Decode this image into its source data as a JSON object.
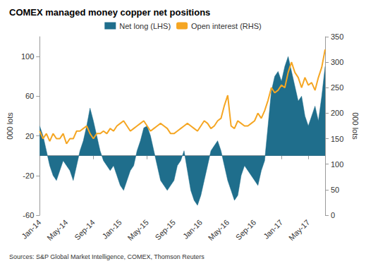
{
  "chart_data": {
    "type": "line",
    "title": "COMEX managed money copper net positions",
    "y_label": "000 lots",
    "y2_label": "000 lots",
    "source": "Sources: S&P Global Market Intelligence, COMEX, Thomson Reuters",
    "categories": [
      "Jan-14",
      null,
      null,
      null,
      null,
      null,
      null,
      null,
      "May-14",
      null,
      null,
      null,
      null,
      null,
      null,
      null,
      "Sep-14",
      null,
      null,
      null,
      null,
      null,
      null,
      null,
      "Jan-15",
      null,
      null,
      null,
      null,
      null,
      null,
      null,
      "May-15",
      null,
      null,
      null,
      null,
      null,
      null,
      null,
      "Sep-15",
      null,
      null,
      null,
      null,
      null,
      null,
      null,
      "Jan-16",
      null,
      null,
      null,
      null,
      null,
      null,
      null,
      "May-16",
      null,
      null,
      null,
      null,
      null,
      null,
      null,
      "Sep-16",
      null,
      null,
      null,
      null,
      null,
      null,
      null,
      "Jan-17",
      null,
      null,
      null,
      null,
      null,
      null,
      null,
      "May-17",
      null,
      null,
      null,
      null,
      null
    ],
    "series": [
      {
        "name": "Net long (LHS)",
        "type": "area",
        "color": "#1f6e8c",
        "values": [
          30,
          20,
          5,
          -10,
          -20,
          -25,
          -15,
          -5,
          -10,
          -15,
          -25,
          -10,
          5,
          15,
          30,
          48,
          35,
          20,
          5,
          -5,
          -10,
          -15,
          -10,
          -20,
          -30,
          -35,
          -25,
          -15,
          -10,
          5,
          15,
          28,
          30,
          20,
          5,
          -10,
          -25,
          -30,
          -35,
          -30,
          -25,
          -10,
          -5,
          5,
          -15,
          -35,
          -45,
          -50,
          -40,
          -25,
          -10,
          5,
          10,
          15,
          5,
          -10,
          -25,
          -35,
          -45,
          -40,
          -20,
          -10,
          -15,
          -20,
          -25,
          -30,
          -15,
          -5,
          30,
          65,
          80,
          85,
          75,
          90,
          100,
          85,
          70,
          55,
          60,
          40,
          30,
          40,
          50,
          35,
          60,
          90
        ]
      },
      {
        "name": "Open interest (RHS)",
        "type": "line",
        "axis": "y2",
        "color": "#f5a623",
        "values": [
          165,
          150,
          160,
          145,
          160,
          150,
          150,
          160,
          140,
          150,
          150,
          165,
          165,
          170,
          175,
          160,
          150,
          160,
          160,
          165,
          160,
          170,
          165,
          175,
          180,
          185,
          175,
          165,
          170,
          175,
          180,
          185,
          175,
          165,
          170,
          175,
          180,
          175,
          170,
          160,
          160,
          165,
          170,
          175,
          180,
          175,
          170,
          165,
          175,
          185,
          180,
          170,
          175,
          185,
          190,
          215,
          235,
          175,
          170,
          185,
          180,
          175,
          175,
          180,
          185,
          200,
          190,
          205,
          225,
          250,
          240,
          245,
          255,
          250,
          280,
          300,
          280,
          270,
          250,
          270,
          255,
          260,
          245,
          270,
          290,
          325
        ]
      }
    ],
    "ylim": [
      -60,
      120
    ],
    "yticks": [
      -60,
      -20,
      20,
      60,
      100
    ],
    "y2lim": [
      0,
      350
    ],
    "y2ticks": [
      0,
      50,
      100,
      150,
      200,
      250,
      300,
      350
    ],
    "grid": false,
    "legend": "top"
  }
}
